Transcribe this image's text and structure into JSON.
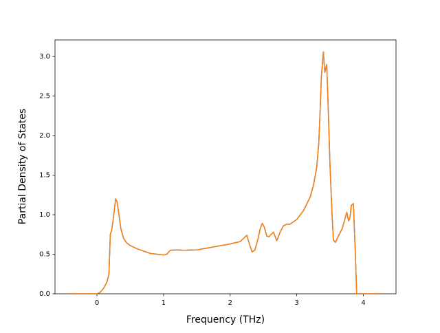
{
  "chart_data": {
    "type": "line",
    "xlabel": "Frequency (THz)",
    "ylabel": "Partial Density of States",
    "x": [
      -0.4,
      0,
      0.05,
      0.1,
      0.15,
      0.18,
      0.2,
      0.22,
      0.25,
      0.28,
      0.3,
      0.33,
      0.36,
      0.4,
      0.45,
      0.5,
      0.6,
      0.7,
      0.8,
      0.9,
      1.0,
      1.05,
      1.1,
      1.2,
      1.3,
      1.5,
      1.6,
      1.8,
      2.0,
      2.15,
      2.2,
      2.25,
      2.3,
      2.33,
      2.37,
      2.42,
      2.45,
      2.48,
      2.51,
      2.55,
      2.58,
      2.65,
      2.7,
      2.75,
      2.8,
      2.85,
      2.9,
      3.0,
      3.1,
      3.2,
      3.25,
      3.3,
      3.33,
      3.35,
      3.37,
      3.4,
      3.42,
      3.45,
      3.47,
      3.5,
      3.53,
      3.55,
      3.58,
      3.62,
      3.68,
      3.72,
      3.75,
      3.78,
      3.8,
      3.82,
      3.85,
      3.88,
      3.9,
      4.25
    ],
    "series": [
      {
        "color": "#1f77b4",
        "values": [
          0,
          0,
          0.02,
          0.07,
          0.15,
          0.25,
          0.75,
          0.8,
          0.98,
          1.2,
          1.17,
          1.0,
          0.82,
          0.7,
          0.64,
          0.61,
          0.57,
          0.54,
          0.51,
          0.5,
          0.49,
          0.5,
          0.55,
          0.555,
          0.55,
          0.555,
          0.57,
          0.6,
          0.63,
          0.66,
          0.7,
          0.74,
          0.6,
          0.53,
          0.55,
          0.7,
          0.82,
          0.89,
          0.85,
          0.73,
          0.72,
          0.78,
          0.67,
          0.78,
          0.86,
          0.88,
          0.88,
          0.94,
          1.05,
          1.22,
          1.37,
          1.6,
          1.9,
          2.3,
          2.75,
          3.06,
          2.8,
          2.9,
          2.4,
          1.6,
          1.0,
          0.68,
          0.65,
          0.72,
          0.82,
          0.93,
          1.03,
          0.92,
          0.97,
          1.12,
          1.14,
          0.5,
          0,
          0
        ]
      },
      {
        "color": "#ff7f0e",
        "values": [
          0,
          0,
          0.02,
          0.07,
          0.15,
          0.25,
          0.75,
          0.8,
          0.98,
          1.2,
          1.17,
          1.0,
          0.82,
          0.7,
          0.64,
          0.61,
          0.57,
          0.54,
          0.51,
          0.5,
          0.49,
          0.5,
          0.55,
          0.555,
          0.55,
          0.555,
          0.57,
          0.6,
          0.63,
          0.66,
          0.7,
          0.74,
          0.6,
          0.53,
          0.55,
          0.7,
          0.82,
          0.89,
          0.85,
          0.73,
          0.72,
          0.78,
          0.67,
          0.78,
          0.86,
          0.88,
          0.88,
          0.94,
          1.05,
          1.22,
          1.37,
          1.6,
          1.9,
          2.3,
          2.75,
          3.06,
          2.8,
          2.9,
          2.4,
          1.6,
          1.0,
          0.68,
          0.65,
          0.72,
          0.82,
          0.93,
          1.03,
          0.92,
          0.97,
          1.12,
          1.14,
          0.5,
          0,
          0
        ]
      }
    ],
    "xlim": [
      -0.63,
      4.49
    ],
    "ylim": [
      0,
      3.21
    ],
    "xticks": [
      0,
      1,
      2,
      3,
      4
    ],
    "yticks": [
      {
        "value": 0,
        "label": "0.0"
      },
      0.5,
      {
        "value": 1,
        "label": "1.0"
      },
      1.5,
      {
        "value": 2,
        "label": "2.0"
      },
      2.5,
      {
        "value": 3,
        "label": "3.0"
      }
    ]
  }
}
